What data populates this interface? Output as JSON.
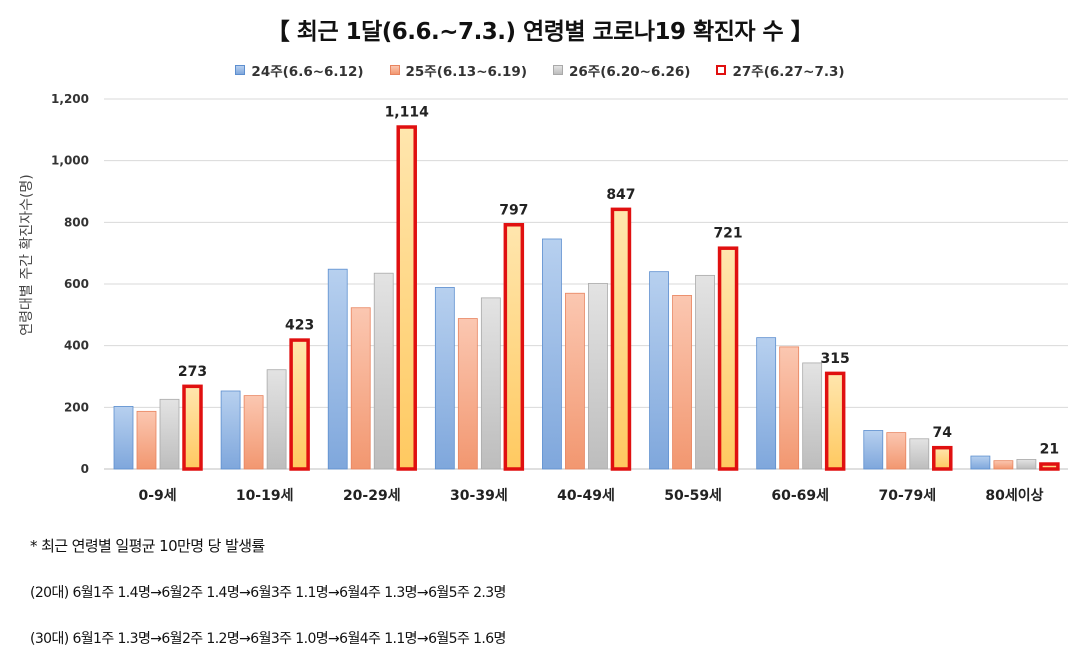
{
  "chart_data": {
    "type": "bar",
    "title": "【 최근 1달(6.6.~7.3.) 연령별 코로나19 확진자 수 】",
    "ylabel": "연령대별 주간 확진자수(명)",
    "xlabel": "",
    "ylim": [
      0,
      1200
    ],
    "yticks": [
      0,
      200,
      400,
      600,
      800,
      1000,
      1200
    ],
    "ytick_labels": [
      "0",
      "200",
      "400",
      "600",
      "800",
      "1,000",
      "1,200"
    ],
    "categories": [
      "0-9세",
      "10-19세",
      "20-29세",
      "30-39세",
      "40-49세",
      "50-59세",
      "60-69세",
      "70-79세",
      "80세이상"
    ],
    "series": [
      {
        "name": "24주(6.6~6.12)",
        "values": [
          203,
          253,
          648,
          589,
          746,
          640,
          426,
          125,
          42
        ]
      },
      {
        "name": "25주(6.13~6.19)",
        "values": [
          187,
          238,
          523,
          488,
          570,
          563,
          396,
          118,
          27
        ]
      },
      {
        "name": "26주(6.20~6.26)",
        "values": [
          226,
          322,
          635,
          555,
          602,
          628,
          344,
          98,
          31
        ]
      },
      {
        "name": "27주(6.27~7.3)",
        "values": [
          273,
          423,
          1114,
          797,
          847,
          721,
          315,
          74,
          21
        ]
      }
    ],
    "data_labels": [
      "273",
      "423",
      "1,114",
      "797",
      "847",
      "721",
      "315",
      "74",
      "21"
    ],
    "colors": {
      "s0": "#8eb4e3",
      "s0_dark": "#5d8fcf",
      "s1": "#f5a98a",
      "s1_dark": "#e8845f",
      "s2": "#cfcfcf",
      "s2_dark": "#a9a9a9",
      "s3": "#ffd78a",
      "s3_border": "#e01010",
      "grid": "#d9d9d9"
    },
    "grid": true,
    "legend_position": "top"
  },
  "notes": {
    "line1": "* 최근 연령별 일평균 10만명 당 발생률",
    "line2": "(20대) 6월1주 1.4명→6월2주 1.4명→6월3주 1.1명→6월4주 1.3명→6월5주 2.3명",
    "line3": "(30대) 6월1주 1.3명→6월2주 1.2명→6월3주 1.0명→6월4주 1.1명→6월5주 1.6명"
  }
}
